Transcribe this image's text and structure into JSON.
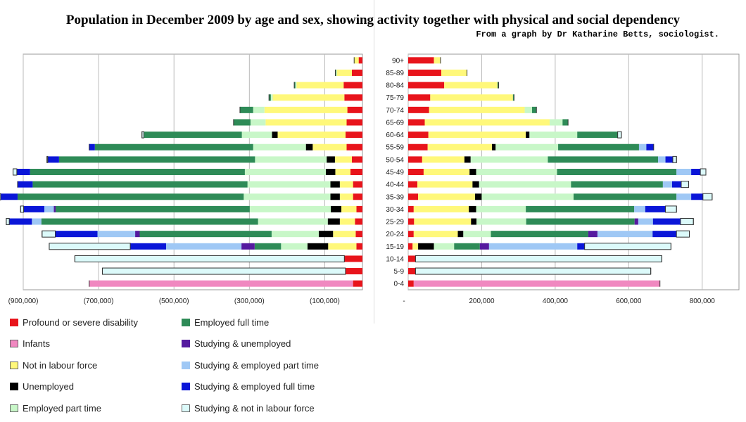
{
  "title": "Population in December 2009 by age and sex, showing activity together with physical and social dependency",
  "subtitle": "From a graph by Dr Katharine Betts, sociologist.",
  "chart_data": {
    "type": "bar",
    "orientation": "horizontal-stacked",
    "categories": [
      "90+",
      "85-89",
      "80-84",
      "75-79",
      "70-74",
      "65-69",
      "60-64",
      "55-59",
      "50-54",
      "45-49",
      "40-44",
      "35-39",
      "30-34",
      "25-29",
      "20-24",
      "15-19",
      "10-14",
      "5-9",
      "0-4"
    ],
    "stack_order": [
      "Profound or severe disability",
      "Infants",
      "Not in labour force",
      "Unemployed",
      "Employed part time",
      "Employed full time",
      "Studying & unemployed",
      "Studying & employed part time",
      "Studying & employed full time",
      "Studying & not in labour force"
    ],
    "colors": {
      "Profound or severe disability": "#e8141b",
      "Infants": "#f088c0",
      "Not in labour force": "#fff87a",
      "Unemployed": "#000000",
      "Employed part time": "#c8f7c8",
      "Employed full time": "#2e8b57",
      "Studying & unemployed": "#551a9f",
      "Studying & employed part time": "#9fc8f5",
      "Studying & employed full time": "#0a16d8",
      "Studying & not in labour force": "#dcfafa"
    },
    "left_panel": {
      "sex": "",
      "xlim": [
        -900000,
        0
      ],
      "x_ticks": [
        -900000,
        -700000,
        -500000,
        -300000,
        -100000
      ],
      "x_tick_labels": [
        "(900,000)",
        "(700,000)",
        "(500,000)",
        "(300,000)",
        "(100,000)"
      ],
      "series": [
        {
          "name": "Profound or severe disability",
          "values": [
            10000,
            28000,
            50000,
            48000,
            40000,
            42000,
            45000,
            42000,
            28000,
            32000,
            25000,
            25000,
            16000,
            20000,
            18000,
            16000,
            48000,
            45000,
            25000
          ]
        },
        {
          "name": "Infants",
          "values": [
            0,
            0,
            0,
            0,
            0,
            0,
            0,
            0,
            0,
            0,
            0,
            0,
            0,
            0,
            0,
            0,
            0,
            0,
            700000
          ]
        },
        {
          "name": "Not in labour force",
          "values": [
            12000,
            40000,
            125000,
            190000,
            220000,
            215000,
            180000,
            90000,
            45000,
            40000,
            35000,
            35000,
            40000,
            40000,
            60000,
            75000,
            0,
            0,
            0
          ]
        },
        {
          "name": "Unemployed",
          "values": [
            0,
            0,
            0,
            0,
            0,
            0,
            15000,
            18000,
            22000,
            25000,
            25000,
            25000,
            28000,
            32000,
            38000,
            55000,
            0,
            0,
            0
          ]
        },
        {
          "name": "Employed part time",
          "values": [
            0,
            2000,
            3000,
            5000,
            30000,
            40000,
            80000,
            140000,
            190000,
            215000,
            220000,
            230000,
            215000,
            185000,
            125000,
            70000,
            0,
            0,
            0
          ]
        },
        {
          "name": "Employed full time",
          "values": [
            0,
            2000,
            3000,
            5000,
            35000,
            45000,
            260000,
            420000,
            520000,
            570000,
            570000,
            600000,
            515000,
            575000,
            350000,
            70000,
            0,
            0,
            0
          ]
        },
        {
          "name": "Studying & unemployed",
          "values": [
            0,
            0,
            0,
            0,
            0,
            0,
            0,
            0,
            0,
            0,
            0,
            0,
            5000,
            0,
            12000,
            35000,
            0,
            0,
            0
          ]
        },
        {
          "name": "Studying & employed part time",
          "values": [
            0,
            0,
            0,
            0,
            0,
            0,
            0,
            0,
            0,
            0,
            0,
            0,
            25000,
            25000,
            100000,
            200000,
            0,
            0,
            0
          ]
        },
        {
          "name": "Studying & employed full time",
          "values": [
            0,
            0,
            0,
            0,
            0,
            0,
            0,
            15000,
            30000,
            35000,
            40000,
            45000,
            55000,
            60000,
            112000,
            95000,
            0,
            0,
            0
          ]
        },
        {
          "name": "Studying & not in labour force",
          "values": [
            0,
            0,
            0,
            0,
            0,
            0,
            5000,
            0,
            2000,
            10000,
            0,
            8000,
            8000,
            8000,
            35000,
            215000,
            715000,
            645000,
            0
          ]
        }
      ]
    },
    "right_panel": {
      "sex": "",
      "xlim": [
        0,
        900000
      ],
      "x_ticks": [
        0,
        200000,
        400000,
        600000,
        800000
      ],
      "x_tick_labels": [
        "-",
        "200,000",
        "400,000",
        "600,000",
        "800,000"
      ],
      "series": [
        {
          "name": "Profound or severe disability",
          "values": [
            70000,
            90000,
            98000,
            60000,
            57000,
            45000,
            55000,
            53000,
            38000,
            42000,
            25000,
            27000,
            15000,
            16000,
            15000,
            12000,
            20000,
            20000,
            15000
          ]
        },
        {
          "name": "Infants",
          "values": [
            0,
            0,
            0,
            0,
            0,
            0,
            0,
            0,
            0,
            0,
            0,
            0,
            0,
            0,
            0,
            0,
            0,
            0,
            670000
          ]
        },
        {
          "name": "Not in labour force",
          "values": [
            18000,
            70000,
            145000,
            225000,
            260000,
            340000,
            265000,
            175000,
            115000,
            125000,
            150000,
            155000,
            150000,
            155000,
            120000,
            15000,
            0,
            0,
            0
          ]
        },
        {
          "name": "Unemployed",
          "values": [
            0,
            0,
            0,
            0,
            0,
            0,
            10000,
            10000,
            17000,
            18000,
            18000,
            18000,
            20000,
            15000,
            15000,
            43000,
            0,
            0,
            0
          ]
        },
        {
          "name": "Employed part time",
          "values": [
            0,
            0,
            0,
            0,
            20000,
            35000,
            130000,
            170000,
            210000,
            220000,
            250000,
            250000,
            135000,
            135000,
            75000,
            55000,
            0,
            0,
            0
          ]
        },
        {
          "name": "Employed full time",
          "values": [
            0,
            0,
            3000,
            3000,
            12000,
            15000,
            110000,
            220000,
            300000,
            325000,
            250000,
            280000,
            295000,
            295000,
            265000,
            70000,
            0,
            0,
            0
          ]
        },
        {
          "name": "Studying & unemployed",
          "values": [
            0,
            0,
            0,
            0,
            0,
            0,
            0,
            0,
            0,
            0,
            0,
            0,
            0,
            10000,
            25000,
            25000,
            0,
            0,
            0
          ]
        },
        {
          "name": "Studying & employed part time",
          "values": [
            0,
            0,
            0,
            0,
            0,
            0,
            0,
            20000,
            20000,
            40000,
            25000,
            40000,
            30000,
            40000,
            150000,
            240000,
            0,
            0,
            0
          ]
        },
        {
          "name": "Studying & employed full time",
          "values": [
            0,
            0,
            0,
            0,
            0,
            0,
            0,
            20000,
            20000,
            25000,
            25000,
            32000,
            55000,
            75000,
            65000,
            20000,
            0,
            0,
            0
          ]
        },
        {
          "name": "Studying & not in labour force",
          "values": [
            0,
            0,
            0,
            0,
            0,
            0,
            10000,
            0,
            10000,
            15000,
            20000,
            25000,
            30000,
            35000,
            35000,
            235000,
            670000,
            640000,
            0
          ]
        }
      ]
    },
    "legend": {
      "placement": "bottom",
      "col1": [
        "Profound or severe disability",
        "Infants",
        "Not in labour force",
        "Unemployed",
        "Employed part time"
      ],
      "col2": [
        "Employed full time",
        "Studying & unemployed",
        "Studying & employed part time",
        "Studying & employed full time",
        "Studying & not in labour force"
      ]
    }
  }
}
